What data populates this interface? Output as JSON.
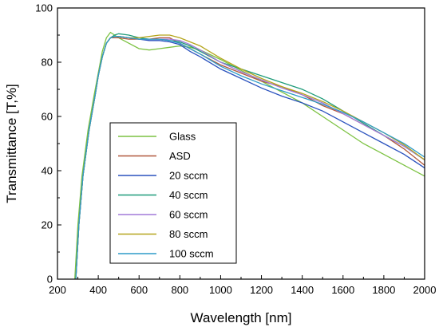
{
  "chart_data": {
    "type": "line",
    "title": "",
    "xlabel": "Wavelength [nm]",
    "ylabel": "Transmittance [T,%]",
    "xlim": [
      200,
      2000
    ],
    "ylim": [
      0,
      100
    ],
    "xticks": [
      200,
      400,
      600,
      800,
      1000,
      1200,
      1400,
      1600,
      1800,
      2000
    ],
    "yticks": [
      0,
      20,
      40,
      60,
      80,
      100
    ],
    "grid": false,
    "legend_position": "center-left",
    "series": [
      {
        "name": "Glass",
        "color": "#7cc242",
        "x": [
          285,
          300,
          320,
          350,
          380,
          400,
          420,
          440,
          460,
          480,
          500,
          550,
          600,
          650,
          700,
          750,
          800,
          850,
          900,
          1000,
          1100,
          1200,
          1300,
          1400,
          1500,
          1600,
          1700,
          1800,
          1900,
          2000
        ],
        "y": [
          0,
          20,
          38,
          55,
          68,
          76,
          84,
          89,
          91,
          90,
          89,
          87,
          85,
          84.5,
          85,
          85.5,
          86,
          85.5,
          84.5,
          81,
          77,
          73,
          69,
          65,
          60,
          55,
          50,
          46,
          42,
          38
        ]
      },
      {
        "name": "ASD",
        "color": "#b0573a",
        "x": [
          290,
          305,
          325,
          355,
          385,
          400,
          420,
          440,
          460,
          480,
          500,
          550,
          600,
          650,
          700,
          750,
          800,
          850,
          900,
          1000,
          1100,
          1200,
          1300,
          1400,
          1500,
          1600,
          1700,
          1800,
          1900,
          2000
        ],
        "y": [
          0,
          20,
          38,
          55,
          68,
          75,
          82,
          87,
          89,
          89,
          89,
          88.5,
          88.5,
          88.5,
          89,
          89,
          87,
          85,
          83,
          79,
          76,
          73,
          71,
          68,
          64,
          61,
          57,
          53,
          48,
          42
        ]
      },
      {
        "name": "20 sccm",
        "color": "#2a52be",
        "x": [
          290,
          305,
          325,
          355,
          385,
          400,
          420,
          440,
          460,
          480,
          500,
          550,
          600,
          650,
          700,
          750,
          800,
          850,
          900,
          1000,
          1100,
          1200,
          1300,
          1400,
          1500,
          1600,
          1700,
          1800,
          1900,
          2000
        ],
        "y": [
          0,
          20,
          38,
          55,
          68,
          75,
          82,
          87,
          89,
          89.5,
          89.5,
          89,
          88.5,
          88,
          88,
          87.5,
          86.5,
          84,
          82,
          77.5,
          74,
          70.5,
          67.5,
          65,
          62,
          58,
          54,
          50,
          46,
          41
        ]
      },
      {
        "name": "40 sccm",
        "color": "#1f9c7a",
        "x": [
          290,
          305,
          325,
          355,
          385,
          400,
          420,
          440,
          460,
          480,
          500,
          550,
          600,
          650,
          700,
          750,
          800,
          850,
          900,
          1000,
          1100,
          1200,
          1300,
          1400,
          1500,
          1600,
          1700,
          1800,
          1900,
          2000
        ],
        "y": [
          0,
          20,
          38,
          55,
          68,
          75,
          82,
          87,
          89,
          90,
          90.5,
          90,
          89,
          88.5,
          88.5,
          88,
          87.5,
          86,
          84,
          80,
          77.5,
          75,
          72.5,
          70,
          66.5,
          62,
          57.5,
          53,
          49,
          44
        ]
      },
      {
        "name": "60 sccm",
        "color": "#a27ad8",
        "x": [
          290,
          305,
          325,
          355,
          385,
          400,
          420,
          440,
          460,
          480,
          500,
          550,
          600,
          650,
          700,
          750,
          800,
          850,
          900,
          1000,
          1100,
          1200,
          1300,
          1400,
          1500,
          1600,
          1700,
          1800,
          1900,
          2000
        ],
        "y": [
          0,
          20,
          38,
          55,
          68,
          75,
          82,
          87,
          89,
          89.5,
          89.5,
          89,
          88.5,
          88.5,
          88.5,
          88.5,
          88,
          86.5,
          84.5,
          80,
          76.5,
          73.5,
          70.5,
          68,
          65,
          61,
          57,
          53,
          49,
          44
        ]
      },
      {
        "name": "80 sccm",
        "color": "#b5a51c",
        "x": [
          290,
          305,
          325,
          355,
          385,
          400,
          420,
          440,
          460,
          480,
          500,
          550,
          600,
          650,
          700,
          750,
          800,
          850,
          900,
          1000,
          1100,
          1200,
          1300,
          1400,
          1500,
          1600,
          1700,
          1800,
          1900,
          2000
        ],
        "y": [
          0,
          20,
          38,
          55,
          68,
          75,
          82,
          87,
          89,
          89.5,
          89.5,
          89,
          89,
          89.5,
          90,
          90,
          89,
          87.5,
          86,
          81.5,
          77.5,
          74,
          71,
          68.5,
          65.5,
          62,
          58,
          54,
          49.5,
          44
        ]
      },
      {
        "name": "100 sccm",
        "color": "#2d9bc8",
        "x": [
          290,
          305,
          325,
          355,
          385,
          400,
          420,
          440,
          460,
          480,
          500,
          550,
          600,
          650,
          700,
          750,
          800,
          850,
          900,
          1000,
          1100,
          1200,
          1300,
          1400,
          1500,
          1600,
          1700,
          1800,
          1900,
          2000
        ],
        "y": [
          0,
          20,
          38,
          55,
          68,
          75,
          82,
          87,
          89,
          89.5,
          89.5,
          89,
          88.5,
          88.5,
          88.5,
          88,
          87,
          85,
          83,
          78.5,
          75,
          72,
          69.5,
          67,
          64.5,
          61.5,
          58,
          54,
          50,
          45
        ]
      }
    ]
  }
}
